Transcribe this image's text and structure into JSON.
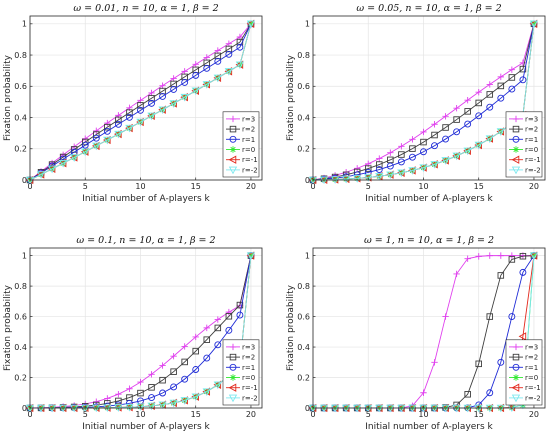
{
  "colors": {
    "r=3": "#e040ee",
    "r=2": "#3d3d3d",
    "r=1": "#1f2bd6",
    "r=0": "#33e833",
    "r=-1": "#e22a1e",
    "r=-2": "#7de8ef"
  },
  "markers": {
    "r=3": "plus",
    "r=2": "square",
    "r=1": "circle",
    "r=0": "asterisk",
    "r=-1": "triangle-left",
    "r=-2": "triangle-down"
  },
  "chart_data": [
    {
      "type": "line",
      "title": "ω = 0.01, n = 10, α = 1, β = 2",
      "xlabel": "Initial number of A-players k",
      "ylabel": "Fixation probability",
      "xlim": [
        0,
        21
      ],
      "ylim": [
        0,
        1.05
      ],
      "xticks": [
        "0",
        "5",
        "10",
        "15",
        "20"
      ],
      "yticks": [
        "0",
        "0.2",
        "0.4",
        "0.6",
        "0.8",
        "1"
      ],
      "legend_position": "bottom-right",
      "x": [
        0,
        1,
        2,
        3,
        4,
        5,
        6,
        7,
        8,
        9,
        10,
        11,
        12,
        13,
        14,
        15,
        16,
        17,
        18,
        19,
        20
      ],
      "series": [
        {
          "name": "r=3",
          "values": [
            0,
            0.0545,
            0.1082,
            0.1611,
            0.2132,
            0.2644,
            0.3149,
            0.3647,
            0.4138,
            0.4622,
            0.51,
            0.5572,
            0.6039,
            0.65,
            0.6955,
            0.7405,
            0.785,
            0.829,
            0.8725,
            0.9155,
            1
          ]
        },
        {
          "name": "r=2",
          "values": [
            0,
            0.0495,
            0.0986,
            0.1473,
            0.1956,
            0.2435,
            0.291,
            0.3382,
            0.385,
            0.4315,
            0.4778,
            0.5237,
            0.5694,
            0.6149,
            0.6601,
            0.7051,
            0.7499,
            0.7945,
            0.8389,
            0.8831,
            1
          ]
        },
        {
          "name": "r=1",
          "values": [
            0,
            0.0447,
            0.0893,
            0.1338,
            0.1784,
            0.2229,
            0.2675,
            0.312,
            0.3566,
            0.4012,
            0.4459,
            0.4906,
            0.5353,
            0.5801,
            0.6249,
            0.6698,
            0.7148,
            0.7598,
            0.8049,
            0.85,
            1
          ]
        },
        {
          "name": "r=0",
          "values": [
            0,
            0.0355,
            0.0713,
            0.1075,
            0.1441,
            0.181,
            0.2183,
            0.256,
            0.294,
            0.3324,
            0.3712,
            0.4104,
            0.45,
            0.4899,
            0.5303,
            0.5711,
            0.6122,
            0.6538,
            0.6958,
            0.7382,
            1
          ]
        },
        {
          "name": "r=-1",
          "values": [
            0,
            0.0355,
            0.0713,
            0.1075,
            0.1441,
            0.181,
            0.2183,
            0.256,
            0.294,
            0.3324,
            0.3712,
            0.4104,
            0.45,
            0.4899,
            0.5303,
            0.5711,
            0.6122,
            0.6538,
            0.6958,
            0.7382,
            1
          ]
        },
        {
          "name": "r=-2",
          "values": [
            0,
            0.0355,
            0.0713,
            0.1075,
            0.1441,
            0.181,
            0.2183,
            0.256,
            0.294,
            0.3324,
            0.3712,
            0.4104,
            0.45,
            0.4899,
            0.5303,
            0.5711,
            0.6122,
            0.6538,
            0.6958,
            0.7382,
            1
          ]
        }
      ]
    },
    {
      "type": "line",
      "title": "ω = 0.05, n = 10, α = 1, β = 2",
      "xlabel": "Initial number of A-players k",
      "ylabel": "Fixation probability",
      "xlim": [
        0,
        21
      ],
      "ylim": [
        0,
        1.05
      ],
      "xticks": [
        "0",
        "5",
        "10",
        "15",
        "20"
      ],
      "yticks": [
        "0",
        "0.2",
        "0.4",
        "0.6",
        "0.8",
        "1"
      ],
      "legend_position": "bottom-right",
      "x": [
        0,
        1,
        2,
        3,
        4,
        5,
        6,
        7,
        8,
        9,
        10,
        11,
        12,
        13,
        14,
        15,
        16,
        17,
        18,
        19,
        20
      ],
      "series": [
        {
          "name": "r=3",
          "values": [
            0,
            0.0126,
            0.0291,
            0.0497,
            0.0745,
            0.1037,
            0.1371,
            0.1746,
            0.2158,
            0.2603,
            0.3076,
            0.357,
            0.4079,
            0.4596,
            0.5113,
            0.5623,
            0.6121,
            0.6602,
            0.7063,
            0.75,
            1
          ]
        },
        {
          "name": "r=2",
          "values": [
            0,
            0.008,
            0.0189,
            0.0333,
            0.0513,
            0.0731,
            0.099,
            0.129,
            0.163,
            0.201,
            0.2428,
            0.288,
            0.3362,
            0.3869,
            0.4395,
            0.4934,
            0.5479,
            0.6025,
            0.6566,
            0.71,
            1
          ]
        },
        {
          "name": "r=1",
          "values": [
            0,
            0.0049,
            0.0117,
            0.021,
            0.0331,
            0.0484,
            0.0671,
            0.0895,
            0.1158,
            0.1462,
            0.1808,
            0.2194,
            0.2621,
            0.3085,
            0.3583,
            0.4111,
            0.4664,
            0.5237,
            0.5822,
            0.6413,
            1
          ]
        },
        {
          "name": "r=0",
          "values": [
            0,
            0.0013,
            0.0033,
            0.0063,
            0.0105,
            0.0163,
            0.024,
            0.0338,
            0.0461,
            0.0611,
            0.0791,
            0.1004,
            0.1254,
            0.1541,
            0.1868,
            0.2238,
            0.265,
            0.3106,
            0.3606,
            0.4148,
            1
          ]
        },
        {
          "name": "r=-1",
          "values": [
            0,
            0.0013,
            0.0033,
            0.0063,
            0.0105,
            0.0163,
            0.024,
            0.0338,
            0.0461,
            0.0611,
            0.0791,
            0.1004,
            0.1254,
            0.1541,
            0.1868,
            0.2238,
            0.265,
            0.3106,
            0.3606,
            0.4148,
            1
          ]
        },
        {
          "name": "r=-2",
          "values": [
            0,
            0.0013,
            0.0033,
            0.0063,
            0.0105,
            0.0163,
            0.024,
            0.0338,
            0.0461,
            0.0611,
            0.0791,
            0.1004,
            0.1254,
            0.1541,
            0.1868,
            0.2238,
            0.265,
            0.3106,
            0.3606,
            0.4148,
            1
          ]
        }
      ]
    },
    {
      "type": "line",
      "title": "ω = 0.1, n = 10, α = 1, β = 2",
      "xlabel": "Initial number of A-players k",
      "ylabel": "Fixation probability",
      "xlim": [
        0,
        21
      ],
      "ylim": [
        0,
        1.05
      ],
      "xticks": [
        "0",
        "5",
        "10",
        "15",
        "20"
      ],
      "yticks": [
        "0",
        "0.2",
        "0.4",
        "0.6",
        "0.8",
        "1"
      ],
      "legend_position": "bottom-right",
      "x": [
        0,
        1,
        2,
        3,
        4,
        5,
        6,
        7,
        8,
        9,
        10,
        11,
        12,
        13,
        14,
        15,
        16,
        17,
        18,
        19,
        20
      ],
      "series": [
        {
          "name": "r=3",
          "values": [
            0,
            0.0017,
            0.0044,
            0.009,
            0.016,
            0.0265,
            0.0417,
            0.0627,
            0.0906,
            0.1263,
            0.17,
            0.2212,
            0.2786,
            0.3403,
            0.4037,
            0.4664,
            0.5259,
            0.5806,
            0.6292,
            0.6715,
            1
          ]
        },
        {
          "name": "r=2",
          "values": [
            0,
            0.0007,
            0.0018,
            0.0037,
            0.0068,
            0.0116,
            0.0191,
            0.0302,
            0.0462,
            0.0683,
            0.0978,
            0.1356,
            0.1825,
            0.2384,
            0.3024,
            0.3731,
            0.4483,
            0.5255,
            0.602,
            0.6755,
            1
          ]
        },
        {
          "name": "r=1",
          "values": [
            0,
            0.0003,
            0.0007,
            0.0014,
            0.0026,
            0.0046,
            0.0077,
            0.0125,
            0.0199,
            0.0308,
            0.0464,
            0.0684,
            0.0984,
            0.1382,
            0.1893,
            0.2526,
            0.328,
            0.4144,
            0.5095,
            0.61,
            1
          ]
        },
        {
          "name": "r=0",
          "values": [
            0,
            0.0,
            0.0001,
            0.0002,
            0.0004,
            0.0007,
            0.0012,
            0.002,
            0.0033,
            0.0054,
            0.0087,
            0.0138,
            0.0216,
            0.0331,
            0.05,
            0.074,
            0.1073,
            0.1523,
            0.2115,
            0.287,
            1
          ]
        },
        {
          "name": "r=-1",
          "values": [
            0,
            0.0,
            0.0001,
            0.0002,
            0.0004,
            0.0007,
            0.0012,
            0.002,
            0.0033,
            0.0054,
            0.0087,
            0.0138,
            0.0216,
            0.0331,
            0.05,
            0.074,
            0.1073,
            0.1523,
            0.2115,
            0.287,
            1
          ]
        },
        {
          "name": "r=-2",
          "values": [
            0,
            0.0,
            0.0001,
            0.0002,
            0.0004,
            0.0007,
            0.0012,
            0.002,
            0.0033,
            0.0054,
            0.0087,
            0.0138,
            0.0216,
            0.0331,
            0.05,
            0.074,
            0.1073,
            0.1523,
            0.2115,
            0.287,
            1
          ]
        }
      ]
    },
    {
      "type": "line",
      "title": "ω = 1, n = 10, α = 1, β = 2",
      "xlabel": "Initial number of A-players k",
      "ylabel": "Fixation probability",
      "xlim": [
        0,
        21
      ],
      "ylim": [
        0,
        1.05
      ],
      "xticks": [
        "0",
        "5",
        "10",
        "15",
        "20"
      ],
      "yticks": [
        "0",
        "0.2",
        "0.4",
        "0.6",
        "0.8",
        "1"
      ],
      "legend_position": "bottom-right",
      "x": [
        0,
        1,
        2,
        3,
        4,
        5,
        6,
        7,
        8,
        9,
        10,
        11,
        12,
        13,
        14,
        15,
        16,
        17,
        18,
        19,
        20
      ],
      "series": [
        {
          "name": "r=3",
          "values": [
            0,
            0,
            0,
            0,
            0,
            0,
            0,
            0,
            0.0003,
            0.0145,
            0.1,
            0.3,
            0.6,
            0.88,
            0.98,
            0.995,
            1,
            1,
            1,
            1,
            1
          ]
        },
        {
          "name": "r=2",
          "values": [
            0,
            0,
            0,
            0,
            0,
            0,
            0,
            0,
            0,
            0,
            0,
            0.0002,
            0.0035,
            0.02,
            0.09,
            0.29,
            0.6,
            0.87,
            0.975,
            0.996,
            1
          ]
        },
        {
          "name": "r=1",
          "values": [
            0,
            0,
            0,
            0,
            0,
            0,
            0,
            0,
            0,
            0,
            0,
            0,
            0,
            0.0001,
            0.001,
            0.02,
            0.1,
            0.3,
            0.6,
            0.89,
            1
          ]
        },
        {
          "name": "r=0",
          "values": [
            0,
            0,
            0,
            0,
            0,
            0,
            0,
            0,
            0,
            0,
            0,
            0,
            0,
            0,
            0,
            0,
            0,
            0.0002,
            0.002,
            0.02,
            1
          ]
        },
        {
          "name": "r=-1",
          "values": [
            0,
            0,
            0,
            0,
            0,
            0,
            0,
            0,
            0,
            0,
            0,
            0,
            0,
            0,
            0,
            0,
            0,
            0.0005,
            0.005,
            0.47,
            1
          ]
        },
        {
          "name": "r=-2",
          "values": [
            0,
            0,
            0,
            0,
            0,
            0,
            0,
            0,
            0,
            0,
            0,
            0,
            0,
            0,
            0,
            0,
            0,
            0.0002,
            0.002,
            0.02,
            1
          ]
        }
      ]
    }
  ]
}
